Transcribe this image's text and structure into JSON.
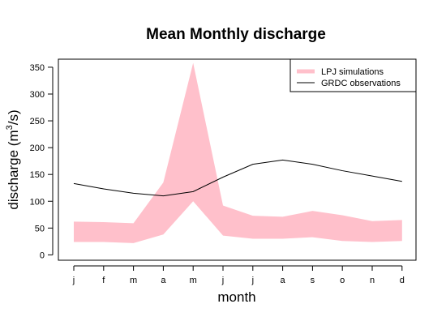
{
  "chart_data": {
    "type": "line",
    "title": "Mean Monthly discharge",
    "xlabel": "month",
    "ylabel_main": "discharge (m",
    "ylabel_sup": "3",
    "ylabel_tail": "/s)",
    "categories": [
      "j",
      "f",
      "m",
      "a",
      "m",
      "j",
      "j",
      "a",
      "s",
      "o",
      "n",
      "d"
    ],
    "ylim": [
      -10,
      365
    ],
    "yticks": [
      0,
      50,
      100,
      150,
      200,
      250,
      300,
      350
    ],
    "legend_position": "top-right",
    "series": [
      {
        "name": "LPJ simulations",
        "kind": "band",
        "color": "#ffc0cb",
        "lower": [
          24,
          24,
          22,
          38,
          100,
          36,
          30,
          30,
          33,
          26,
          24,
          26
        ],
        "upper": [
          62,
          61,
          59,
          135,
          358,
          92,
          73,
          71,
          82,
          74,
          63,
          65
        ]
      },
      {
        "name": "GRDC observations",
        "kind": "line",
        "color": "#000000",
        "values": [
          133,
          123,
          115,
          110,
          118,
          145,
          169,
          177,
          169,
          157,
          147,
          137
        ]
      }
    ]
  }
}
